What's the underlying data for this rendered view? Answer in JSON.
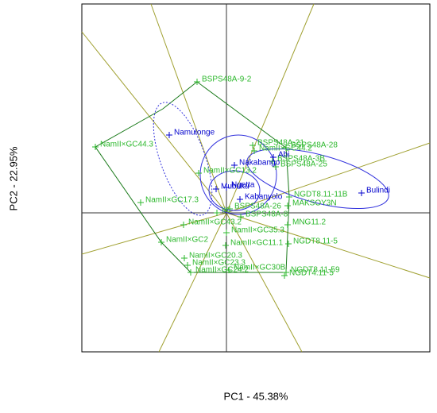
{
  "chart_data": {
    "type": "scatter",
    "xlabel": "PC1 - 45.38%",
    "ylabel": "PC2 - 22.95%",
    "xlim": [
      -182,
      256
    ],
    "ylim": [
      -175,
      263
    ],
    "series": [
      {
        "color": "#2db82d",
        "labels": [
          "BSPS48A-9-2",
          "NamII×GC44.3",
          "NamII×GC17.3",
          "NamII×GC13.2",
          "BSPS48A-21",
          "NamII×GC44.2",
          "BSPS48A-28",
          "BSPS48A-3B",
          "BSPS48A-25",
          "NGDT8.11-11B",
          "MAKSOY3N",
          "BSPS48A-26",
          "BSPS48A-8",
          "MNG11.2",
          "NamII×GC43.2",
          "NGDT8.11-5",
          "NamII×GC11.1",
          "NamII×GC20.3",
          "NamII×GC30B",
          "NGDT8.11-59",
          "NGDT4.11-5",
          "NamII×GC2",
          "NamII×GC23.3",
          "NamII×GC24.2",
          "IK",
          "NamII×GC35.3"
        ],
        "x": [
          -37,
          -165,
          -108,
          -35,
          33,
          35,
          75,
          58,
          62,
          79,
          77,
          4,
          18,
          77,
          -54,
          78,
          -1,
          -53,
          3,
          75,
          73,
          -82,
          -49,
          -45,
          -12,
          0
        ],
        "values": [
          165,
          83,
          13,
          50,
          85,
          78,
          82,
          65,
          58,
          20,
          9,
          5,
          -5,
          -15,
          -15,
          -39,
          -41,
          -57,
          -72,
          -75,
          -79,
          -37,
          -66,
          -75,
          0,
          -25
        ]
      },
      {
        "color": "#0000cc",
        "labels": [
          "Namulonge",
          "Abi",
          "Nakabango",
          "Ngetta",
          "Mubuku",
          "Kabanyolo",
          "Bulindi"
        ],
        "x": [
          -72,
          59,
          10,
          0,
          -13,
          17,
          170
        ],
        "values": [
          98,
          70,
          60,
          32,
          30,
          17,
          25
        ]
      }
    ]
  }
}
